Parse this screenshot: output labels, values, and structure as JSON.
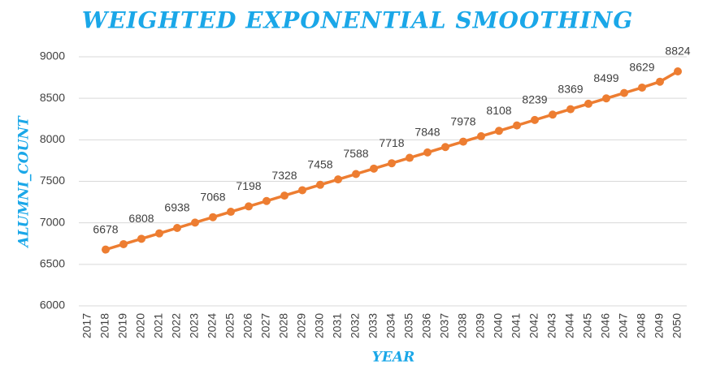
{
  "chart_data": {
    "type": "line",
    "title": "WEIGHTED EXPONENTIAL SMOOTHING",
    "x_label": "YEAR",
    "y_label": "ALUMNI_COUNT",
    "categories": [
      "2017",
      "2018",
      "2019",
      "2020",
      "2021",
      "2022",
      "2023",
      "2024",
      "2025",
      "2026",
      "2027",
      "2028",
      "2029",
      "2030",
      "2031",
      "2032",
      "2033",
      "2034",
      "2035",
      "2036",
      "2037",
      "2038",
      "2039",
      "2040",
      "2041",
      "2042",
      "2043",
      "2044",
      "2045",
      "2046",
      "2047",
      "2048",
      "2049",
      "2050"
    ],
    "series": [
      {
        "name": "ALUMNI_COUNT",
        "color": "#ed7d31",
        "values": [
          null,
          6678,
          6743,
          6808,
          6873,
          6938,
          7003,
          7068,
          7133,
          7198,
          7263,
          7328,
          7393,
          7458,
          7523,
          7588,
          7653,
          7718,
          7783,
          7848,
          7913,
          7978,
          8043,
          8108,
          8173,
          8239,
          8304,
          8369,
          8434,
          8499,
          8564,
          8629,
          8700,
          8824
        ],
        "value_labels": [
          null,
          "6678",
          null,
          "6808",
          null,
          "6938",
          null,
          "7068",
          null,
          "7198",
          null,
          "7328",
          null,
          "7458",
          null,
          "7588",
          null,
          "7718",
          null,
          "7848",
          null,
          "7978",
          null,
          "8108",
          null,
          "8239",
          null,
          "8369",
          null,
          "8499",
          null,
          "8629",
          null,
          "8824"
        ]
      }
    ],
    "ylim": [
      6000,
      9000
    ],
    "yticks": [
      6000,
      6500,
      7000,
      7500,
      8000,
      8500,
      9000
    ],
    "grid": true
  }
}
